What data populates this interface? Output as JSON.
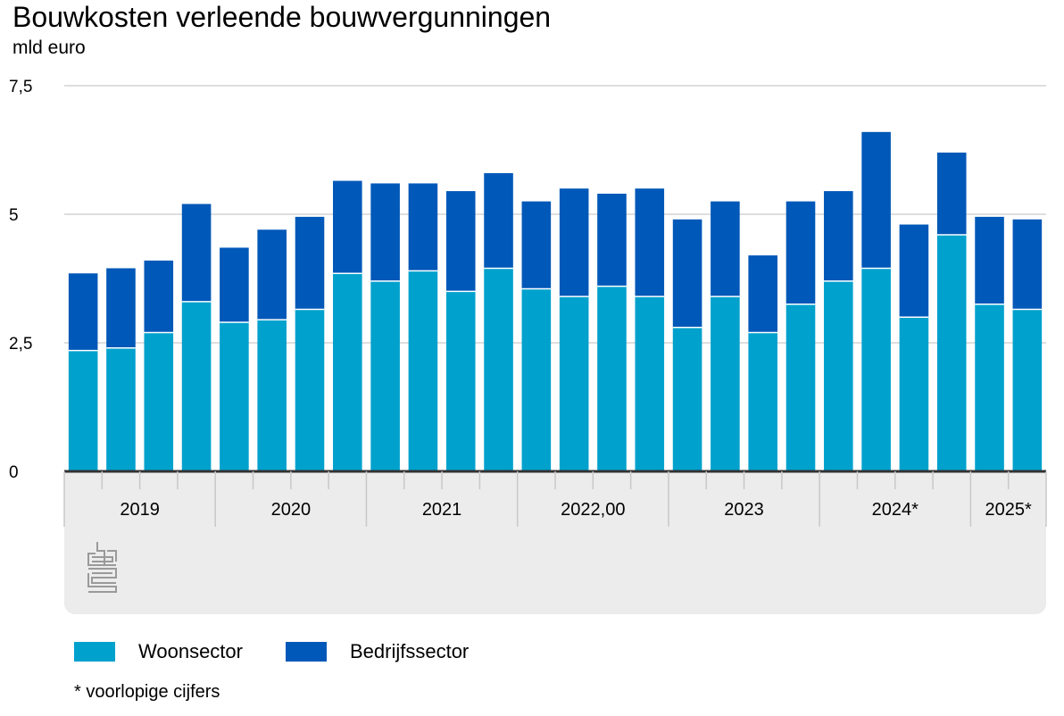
{
  "chart_data": {
    "type": "bar",
    "stacked": true,
    "title": "Bouwkosten verleende bouwvergunningen",
    "subtitle": "mld euro",
    "ylim": [
      0,
      7.5
    ],
    "yticks": [
      "0",
      "2,5",
      "5",
      "7,5"
    ],
    "ytick_values": [
      0,
      2.5,
      5,
      7.5
    ],
    "grid": true,
    "legend_position": "bottom-left",
    "year_labels": [
      "2019",
      "2020",
      "2021",
      "2022,00",
      "2023",
      "2024*",
      "2025*"
    ],
    "quarters_per_year": [
      4,
      4,
      4,
      4,
      4,
      4,
      2
    ],
    "series": [
      {
        "name": "Woonsector",
        "color": "#00a1cd",
        "values": [
          2.35,
          2.4,
          2.7,
          3.3,
          2.9,
          2.95,
          3.15,
          3.85,
          3.7,
          3.9,
          3.5,
          3.95,
          3.55,
          3.4,
          3.6,
          3.4,
          2.8,
          3.4,
          2.7,
          3.25,
          3.7,
          3.95,
          3.0,
          4.6,
          3.25,
          3.15
        ]
      },
      {
        "name": "Bedrijfssector",
        "color": "#0058b8",
        "values": [
          1.5,
          1.55,
          1.4,
          1.9,
          1.45,
          1.75,
          1.8,
          1.8,
          1.9,
          1.7,
          1.95,
          1.85,
          1.7,
          2.1,
          1.8,
          2.1,
          2.1,
          1.85,
          1.5,
          2.0,
          1.75,
          2.65,
          1.8,
          1.6,
          1.7,
          1.75
        ]
      }
    ]
  },
  "footnote": "* voorlopige cijfers",
  "logo": "cbs-logo-icon"
}
